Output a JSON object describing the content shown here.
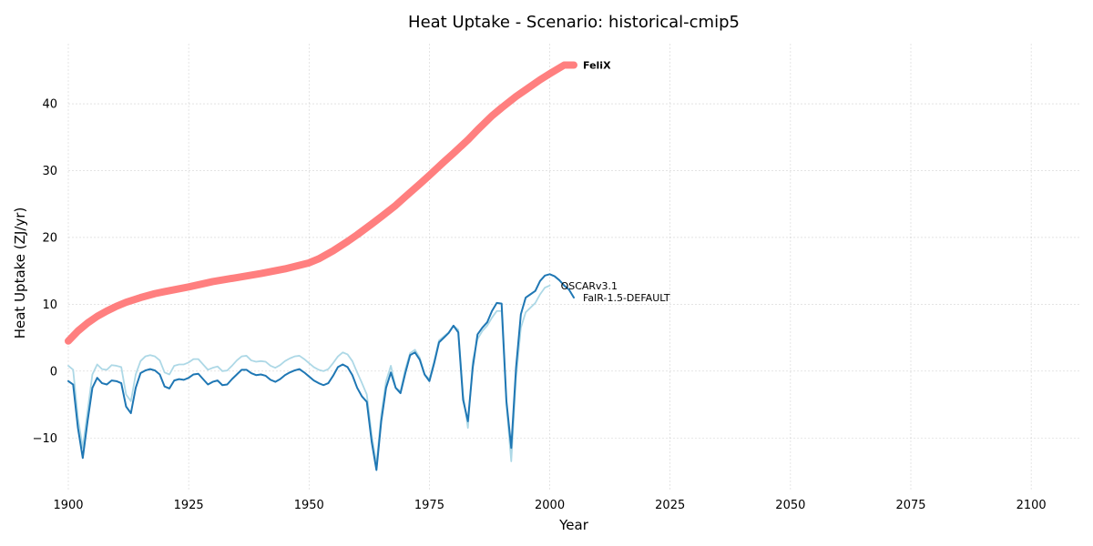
{
  "chart_data": {
    "type": "line",
    "title": "Heat Uptake - Scenario: historical-cmip5",
    "xlabel": "Year",
    "ylabel": "Heat Uptake (ZJ/yr)",
    "xlim": [
      1900,
      2110
    ],
    "ylim": [
      -18,
      49
    ],
    "xticks": [
      1900,
      1925,
      1950,
      1975,
      2000,
      2025,
      2050,
      2075,
      2100
    ],
    "yticks": [
      -10,
      0,
      10,
      20,
      30,
      40
    ],
    "grid": true,
    "series": [
      {
        "name": "FeliX",
        "color": "#ff7f7f",
        "label_weight": "bold",
        "x": [
          1900,
          1902,
          1904,
          1906,
          1908,
          1910,
          1912,
          1915,
          1918,
          1920,
          1925,
          1930,
          1935,
          1940,
          1945,
          1950,
          1952,
          1955,
          1958,
          1960,
          1963,
          1965,
          1968,
          1970,
          1973,
          1975,
          1978,
          1980,
          1983,
          1985,
          1988,
          1990,
          1993,
          1995,
          1998,
          2000,
          2003,
          2005
        ],
        "y": [
          4.5,
          6.0,
          7.2,
          8.2,
          9.0,
          9.7,
          10.3,
          11.0,
          11.6,
          11.9,
          12.6,
          13.4,
          14.0,
          14.6,
          15.3,
          16.2,
          16.8,
          18.0,
          19.4,
          20.4,
          22.0,
          23.1,
          24.8,
          26.1,
          28.0,
          29.3,
          31.3,
          32.6,
          34.6,
          36.1,
          38.2,
          39.4,
          41.1,
          42.1,
          43.6,
          44.5,
          45.8,
          45.8
        ]
      },
      {
        "name": "OSCARv3.1",
        "color": "#add8e6",
        "label_weight": "normal",
        "x": [
          1900,
          1901,
          1902,
          1903,
          1904,
          1905,
          1906,
          1907,
          1908,
          1909,
          1910,
          1911,
          1912,
          1913,
          1914,
          1915,
          1916,
          1917,
          1918,
          1919,
          1920,
          1921,
          1922,
          1923,
          1924,
          1925,
          1926,
          1927,
          1928,
          1929,
          1930,
          1931,
          1932,
          1933,
          1934,
          1935,
          1936,
          1937,
          1938,
          1939,
          1940,
          1941,
          1942,
          1943,
          1944,
          1945,
          1946,
          1947,
          1948,
          1949,
          1950,
          1951,
          1952,
          1953,
          1954,
          1955,
          1956,
          1957,
          1958,
          1959,
          1960,
          1961,
          1962,
          1963,
          1964,
          1965,
          1966,
          1967,
          1968,
          1969,
          1970,
          1971,
          1972,
          1973,
          1974,
          1975,
          1976,
          1977,
          1978,
          1979,
          1980,
          1981,
          1982,
          1983,
          1984,
          1985,
          1986,
          1987,
          1988,
          1989,
          1990,
          1991,
          1992,
          1993,
          1994,
          1995,
          1996,
          1997,
          1998,
          1999,
          2000
        ],
        "y": [
          0.8,
          0.2,
          -7.0,
          -11.5,
          -6.0,
          -0.5,
          1.0,
          0.3,
          0.2,
          0.9,
          0.8,
          0.6,
          -3.5,
          -4.5,
          -0.5,
          1.5,
          2.2,
          2.4,
          2.2,
          1.6,
          -0.2,
          -0.5,
          0.8,
          1.0,
          1.0,
          1.3,
          1.8,
          1.8,
          1.0,
          0.2,
          0.5,
          0.7,
          0.0,
          0.1,
          0.8,
          1.6,
          2.2,
          2.3,
          1.6,
          1.4,
          1.5,
          1.4,
          0.8,
          0.5,
          0.9,
          1.5,
          1.9,
          2.2,
          2.3,
          1.8,
          1.2,
          0.6,
          0.2,
          0.0,
          0.3,
          1.2,
          2.2,
          2.8,
          2.5,
          1.5,
          -0.2,
          -1.8,
          -3.5,
          -9.5,
          -14.0,
          -6.5,
          -1.5,
          0.8,
          -2.5,
          -3.0,
          0.3,
          2.7,
          3.2,
          2.0,
          -0.5,
          -1.2,
          1.5,
          4.6,
          5.2,
          5.8,
          6.8,
          6.2,
          -3.5,
          -8.5,
          1.5,
          4.8,
          6.0,
          6.8,
          8.0,
          9.0,
          9.0,
          -5.0,
          -13.5,
          -1.0,
          6.5,
          8.8,
          9.5,
          10.2,
          11.5,
          12.5,
          12.8
        ]
      },
      {
        "name": "FaIR-1.5-DEFAULT",
        "color": "#1f77b4",
        "label_weight": "normal",
        "x": [
          1900,
          1901,
          1902,
          1903,
          1904,
          1905,
          1906,
          1907,
          1908,
          1909,
          1910,
          1911,
          1912,
          1913,
          1914,
          1915,
          1916,
          1917,
          1918,
          1919,
          1920,
          1921,
          1922,
          1923,
          1924,
          1925,
          1926,
          1927,
          1928,
          1929,
          1930,
          1931,
          1932,
          1933,
          1934,
          1935,
          1936,
          1937,
          1938,
          1939,
          1940,
          1941,
          1942,
          1943,
          1944,
          1945,
          1946,
          1947,
          1948,
          1949,
          1950,
          1951,
          1952,
          1953,
          1954,
          1955,
          1956,
          1957,
          1958,
          1959,
          1960,
          1961,
          1962,
          1963,
          1964,
          1965,
          1966,
          1967,
          1968,
          1969,
          1970,
          1971,
          1972,
          1973,
          1974,
          1975,
          1976,
          1977,
          1978,
          1979,
          1980,
          1981,
          1982,
          1983,
          1984,
          1985,
          1986,
          1987,
          1988,
          1989,
          1990,
          1991,
          1992,
          1993,
          1994,
          1995,
          1996,
          1997,
          1998,
          1999,
          2000,
          2001,
          2002,
          2003,
          2004,
          2005
        ],
        "y": [
          -1.5,
          -2.0,
          -8.5,
          -13.0,
          -7.5,
          -2.5,
          -1.0,
          -1.8,
          -2.0,
          -1.4,
          -1.5,
          -1.8,
          -5.3,
          -6.3,
          -2.5,
          -0.3,
          0.1,
          0.3,
          0.1,
          -0.5,
          -2.3,
          -2.6,
          -1.4,
          -1.2,
          -1.3,
          -1.0,
          -0.5,
          -0.4,
          -1.2,
          -2.0,
          -1.6,
          -1.4,
          -2.1,
          -2.0,
          -1.2,
          -0.5,
          0.2,
          0.2,
          -0.3,
          -0.6,
          -0.5,
          -0.7,
          -1.3,
          -1.6,
          -1.2,
          -0.6,
          -0.2,
          0.1,
          0.3,
          -0.2,
          -0.8,
          -1.4,
          -1.8,
          -2.1,
          -1.8,
          -0.7,
          0.6,
          1.0,
          0.6,
          -0.6,
          -2.5,
          -3.8,
          -4.6,
          -10.5,
          -14.8,
          -7.5,
          -2.5,
          -0.2,
          -2.5,
          -3.3,
          -0.3,
          2.4,
          2.8,
          1.7,
          -0.5,
          -1.5,
          1.2,
          4.3,
          5.0,
          5.7,
          6.8,
          5.8,
          -4.3,
          -7.5,
          0.5,
          5.5,
          6.5,
          7.3,
          9.0,
          10.2,
          10.1,
          -4.5,
          -11.5,
          0.5,
          8.5,
          11.0,
          11.5,
          12.0,
          13.5,
          14.3,
          14.5,
          14.2,
          13.6,
          12.8,
          12.2,
          11.0
        ]
      }
    ]
  }
}
